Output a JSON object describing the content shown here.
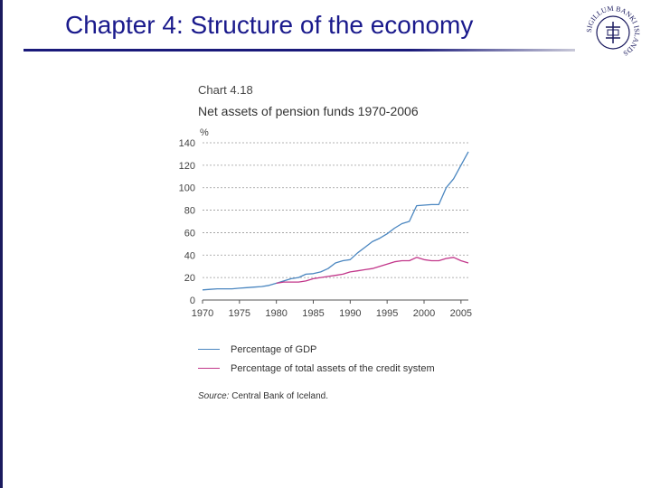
{
  "slide": {
    "title": "Chapter 4: Structure of the economy"
  },
  "seal": {
    "text": "SIGILLUM BANKI ISLANDS",
    "color": "#1a1a5e"
  },
  "chart_data": {
    "type": "line",
    "chart_number": "Chart 4.18",
    "title": "Net assets of pension funds 1970-2006",
    "ylabel": "%",
    "xlabel": "",
    "xlim": [
      1970,
      2006
    ],
    "ylim": [
      0,
      140
    ],
    "yticks": [
      0,
      20,
      40,
      60,
      80,
      100,
      120,
      140
    ],
    "xticks": [
      1970,
      1975,
      1980,
      1985,
      1990,
      1995,
      2000,
      2005
    ],
    "grid": true,
    "legend_position": "bottom",
    "series": [
      {
        "name": "Percentage of GDP",
        "color": "#4a86c0",
        "x": [
          1970,
          1971,
          1972,
          1973,
          1974,
          1975,
          1976,
          1977,
          1978,
          1979,
          1980,
          1981,
          1982,
          1983,
          1984,
          1985,
          1986,
          1987,
          1988,
          1989,
          1990,
          1991,
          1992,
          1993,
          1994,
          1995,
          1996,
          1997,
          1998,
          1999,
          2000,
          2001,
          2002,
          2003,
          2004,
          2005,
          2006
        ],
        "values": [
          9,
          9.5,
          10,
          10,
          10,
          10.5,
          11,
          11.5,
          12,
          13,
          15,
          17,
          19,
          20,
          23,
          23.5,
          25,
          28,
          33,
          35,
          36,
          42,
          47,
          52,
          55,
          59,
          64,
          68,
          70,
          84,
          84.5,
          85,
          85,
          100,
          108,
          120,
          132
        ]
      },
      {
        "name": "Percentage of total assets of the credit system",
        "color": "#c2368a",
        "x": [
          1980,
          1981,
          1982,
          1983,
          1984,
          1985,
          1986,
          1987,
          1988,
          1989,
          1990,
          1991,
          1992,
          1993,
          1994,
          1995,
          1996,
          1997,
          1998,
          1999,
          2000,
          2001,
          2002,
          2003,
          2004,
          2005,
          2006
        ],
        "values": [
          15,
          16,
          16,
          16,
          17,
          19,
          20,
          21,
          22,
          23,
          25,
          26,
          27,
          28,
          30,
          32,
          34,
          35,
          35,
          38,
          36,
          35,
          35,
          37,
          38,
          35,
          33
        ]
      }
    ],
    "source": "Central Bank of Iceland."
  },
  "source_label": "Source:"
}
